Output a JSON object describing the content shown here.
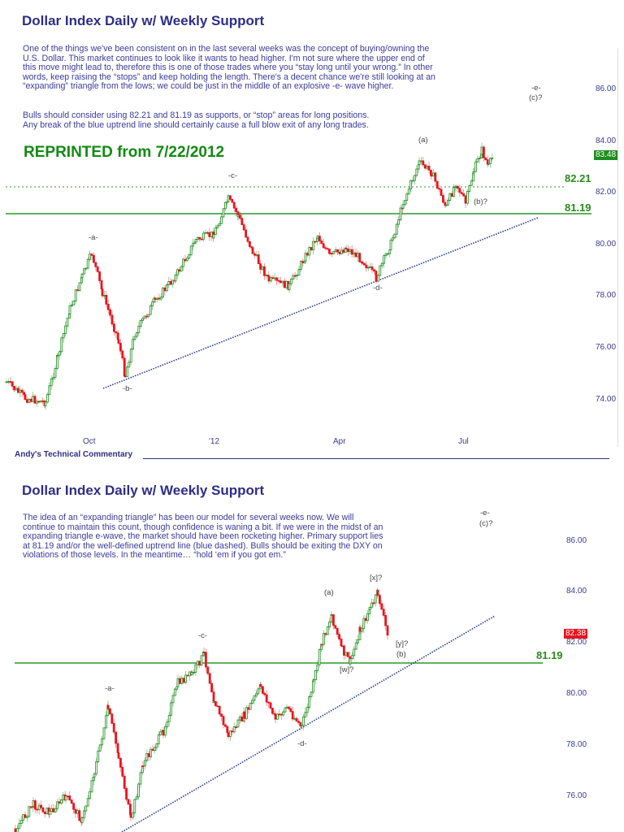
{
  "panels": [
    {
      "title": "Dollar Index Daily w/ Weekly Support",
      "paragraph1": [
        "One of the things we've been consistent on in the last several weeks was the concept of buying/owning the",
        "U.S. Dollar.  This market continues to look like it wants to head higher.  I'm not sure where the upper end of",
        "this move might lead to, therefore this is one of those trades where you “stay long until your wrong.”  In other",
        "words, keep raising the “stops” and keep holding the length.  There's a decent chance we're still looking at an",
        "“expanding” triangle from the lows; we could be just in the middle of an explosive -e- wave higher."
      ],
      "paragraph2": [
        "Bulls should consider using 82.21 and 81.19 as supports, or “stop” areas for long positions.",
        "Any break of the blue uptrend line should certainly cause a full blow exit of any long trades."
      ],
      "banner": "REPRINTED from 7/22/2012",
      "level_labels": {
        "upper": "82.21",
        "lower": "81.19"
      },
      "last_price": "83.48",
      "last_price_color": "#1e8c1e",
      "footer": "Andy's Technical Commentary"
    },
    {
      "title": "Dollar Index Daily w/ Weekly Support",
      "paragraph1": [
        "The idea of an “expanding triangle” has been our model for several weeks now.  We will",
        "continue to maintain this count, though confidence is waning a bit.  If we were in the midst of an",
        "expanding triangle e-wave, the market should have been rocketing higher.  Primary support lies",
        "at 81.19 and/or the well-defined uptrend line (blue dashed).  Bulls should be exiting the DXY on",
        "violations of those levels.  In the meantime… “hold ‘em if you got em.”"
      ],
      "level_labels": {
        "lower": "81.19"
      },
      "last_price": "82.38",
      "last_price_color": "#e8141e"
    }
  ],
  "colors": {
    "title": "#2e2e86",
    "body_text": "#3b3b9a",
    "up_candle": "#1e8c1e",
    "down_candle": "#e8141e",
    "support_line": "#2a9a2a",
    "trend_line": "#2b3a8f",
    "banner": "#138a13"
  },
  "chart_data": [
    {
      "type": "candlestick",
      "title": "Dollar Index Daily w/ Weekly Support",
      "xlabel": "",
      "ylabel": "",
      "x_ticks": [
        "Oct",
        "'12",
        "Apr",
        "Jul"
      ],
      "y_ticks": [
        "74.00",
        "76.00",
        "78.00",
        "80.00",
        "82.00",
        "84.00",
        "86.00"
      ],
      "ylim": [
        73,
        86.5
      ],
      "horizontal_levels": [
        {
          "value": 82.21,
          "style": "dotted",
          "label": "82.21"
        },
        {
          "value": 81.19,
          "style": "solid",
          "label": "81.19"
        }
      ],
      "trendline": {
        "style": "dotted blue",
        "from": [
          "Oct (-b-)",
          74.4
        ],
        "to": [
          "Aug",
          81.0
        ]
      },
      "wave_labels": [
        {
          "text": "-a-",
          "approx_value": 80.0
        },
        {
          "text": "-b-",
          "approx_value": 74.4
        },
        {
          "text": "-c-",
          "approx_value": 81.8
        },
        {
          "text": "-d-",
          "approx_value": 78.6
        },
        {
          "text": "(a)",
          "approx_value": 83.5
        },
        {
          "text": "(b)?",
          "approx_value": 81.3
        },
        {
          "text": "-e- (c)?",
          "approx_value": 86.0
        }
      ],
      "last_price": 83.48,
      "approx_path": [
        {
          "label": "Aug 2011 start",
          "value": 74.3
        },
        {
          "label": "Aug low",
          "value": 73.8
        },
        {
          "label": "-a- (early Oct)",
          "value": 79.8
        },
        {
          "label": "-b- (late Oct)",
          "value": 74.6
        },
        {
          "label": "Nov high",
          "value": 80.5
        },
        {
          "label": "-c- (early Jan)",
          "value": 81.8
        },
        {
          "label": "Feb low",
          "value": 78.2
        },
        {
          "label": "Mar high",
          "value": 80.6
        },
        {
          "label": "-d- (early May)",
          "value": 78.6
        },
        {
          "label": "(a) (early Jun)",
          "value": 83.4
        },
        {
          "label": "(b)? (mid Jun)",
          "value": 81.3
        },
        {
          "label": "Jul high",
          "value": 83.8
        },
        {
          "label": "last",
          "value": 83.48
        }
      ]
    },
    {
      "type": "candlestick",
      "title": "Dollar Index Daily w/ Weekly Support",
      "y_ticks": [
        "76.00",
        "78.00",
        "80.00",
        "82.00",
        "84.00",
        "86.00"
      ],
      "ylim": [
        75,
        87.5
      ],
      "horizontal_levels": [
        {
          "value": 81.19,
          "style": "solid",
          "label": "81.19"
        }
      ],
      "trendline": {
        "style": "dotted blue"
      },
      "wave_labels": [
        {
          "text": "-a-",
          "approx_value": 79.8
        },
        {
          "text": "-c-",
          "approx_value": 81.8
        },
        {
          "text": "-d-",
          "approx_value": 78.6
        },
        {
          "text": "(a)",
          "approx_value": 83.5
        },
        {
          "text": "[w]?",
          "approx_value": 81.2
        },
        {
          "text": "[x]?",
          "approx_value": 84.0
        },
        {
          "text": "[y]? (b)",
          "approx_value": 82.2
        },
        {
          "text": "-e- (c)?",
          "approx_value": 87.5
        }
      ],
      "last_price": 82.38
    }
  ]
}
